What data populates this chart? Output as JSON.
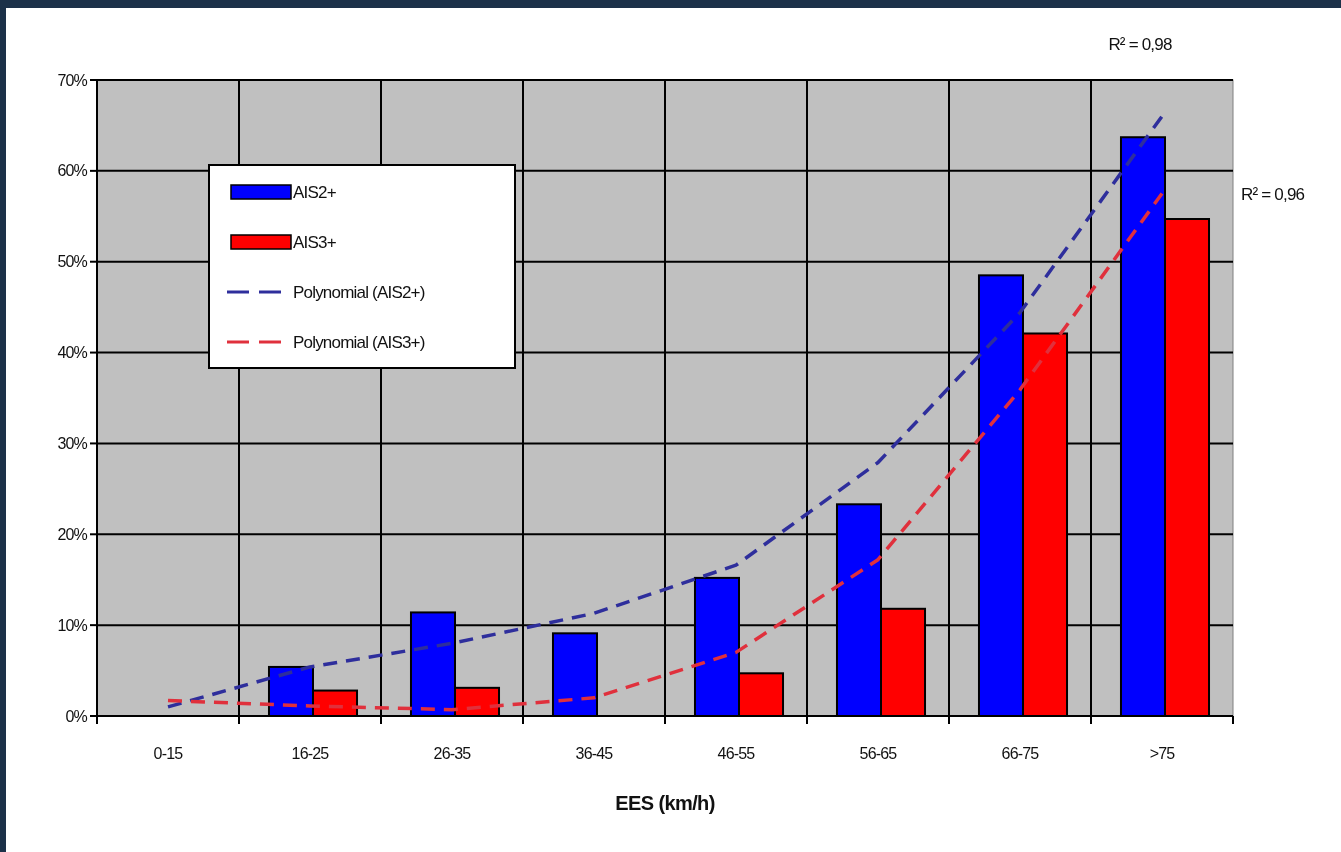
{
  "chart_data": {
    "type": "bar",
    "categories": [
      "0-15",
      "16-25",
      "26-35",
      "36-45",
      "46-55",
      "56-65",
      "66-75",
      ">75"
    ],
    "series": [
      {
        "name": "AIS2+",
        "color": "#0000ff",
        "values": [
          0,
          5.4,
          11.4,
          9.1,
          15.2,
          23.3,
          48.5,
          63.7
        ]
      },
      {
        "name": "AIS3+",
        "color": "#ff0000",
        "values": [
          0,
          2.8,
          3.1,
          0,
          4.7,
          11.8,
          42.1,
          54.7
        ]
      },
      {
        "name": "Polynomial (AIS2+)",
        "type": "line",
        "color": "#2e2e9c",
        "line_style": "dashed",
        "values": [
          1.0,
          5.4,
          8.0,
          11.3,
          16.6,
          27.9,
          44.4,
          66
        ]
      },
      {
        "name": "Polynomial (AIS3+)",
        "type": "line",
        "color": "#e0303c",
        "line_style": "dashed",
        "values": [
          1.7,
          1.1,
          0.7,
          2.0,
          7.0,
          17.2,
          35.9,
          57.5
        ]
      }
    ],
    "xlabel": "EES (km/h)",
    "ylim": [
      0,
      70
    ],
    "yticks": [
      {
        "value": 0,
        "label": "0%"
      },
      {
        "value": 10,
        "label": "10%"
      },
      {
        "value": 20,
        "label": "20%"
      },
      {
        "value": 30,
        "label": "30%"
      },
      {
        "value": 40,
        "label": "40%"
      },
      {
        "value": 50,
        "label": "50%"
      },
      {
        "value": 60,
        "label": "60%"
      },
      {
        "value": 70,
        "label": "70%"
      }
    ],
    "grid": true,
    "legend": "top left",
    "annotations": [
      "R² = 0,98",
      "R² = 0,96"
    ]
  }
}
